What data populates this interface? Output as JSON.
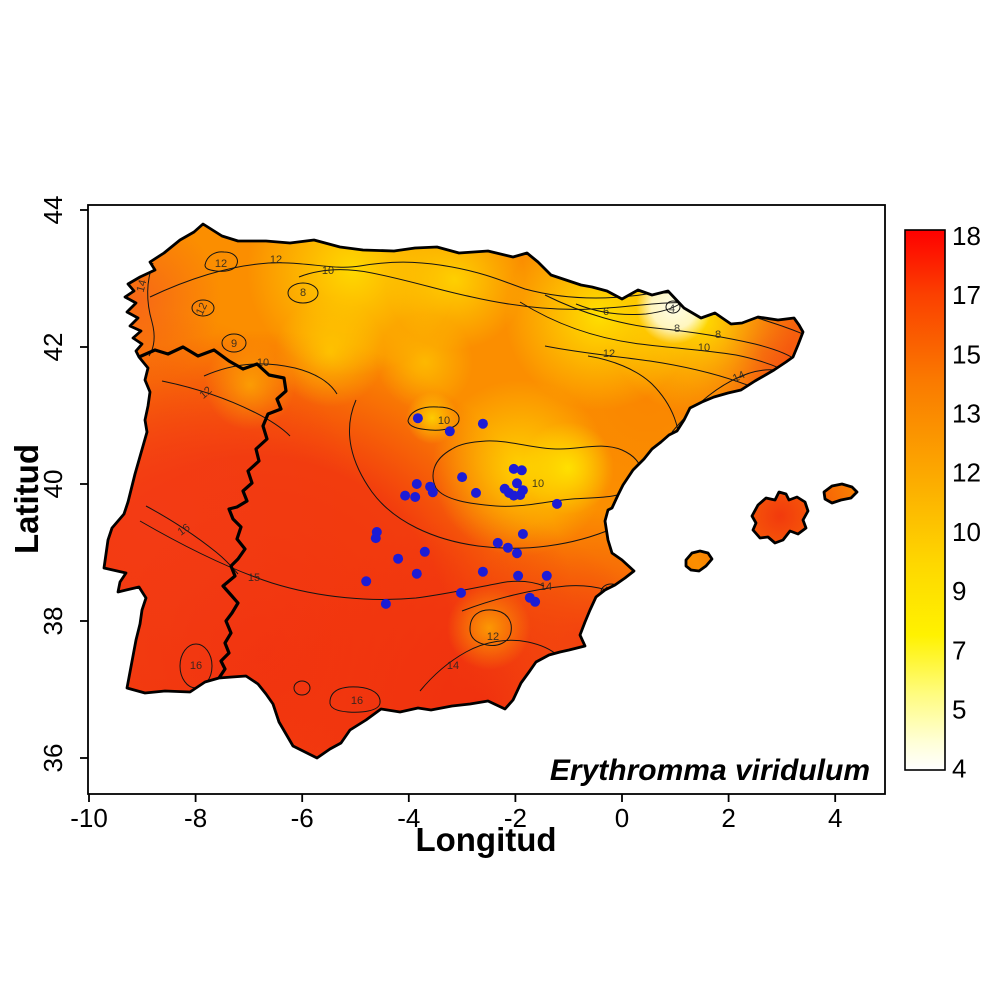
{
  "annotation": {
    "species_label": "Erythromma viridulum"
  },
  "axes": {
    "x": {
      "label": "Longitud",
      "ticks": [
        "-10",
        "-8",
        "-6",
        "-4",
        "-2",
        "0",
        "2",
        "4"
      ]
    },
    "y": {
      "label": "Latitud",
      "ticks": [
        "44",
        "42",
        "40",
        "38",
        "36"
      ]
    }
  },
  "colorbar": {
    "ticks": [
      "18",
      "17",
      "15",
      "13",
      "12",
      "10",
      "9",
      "7",
      "5",
      "4"
    ],
    "min": 4,
    "max": 18,
    "gradient_top_to_bottom": [
      "#FF0000",
      "#FB4000",
      "#FA7A00",
      "#FCA800",
      "#FED800",
      "#FFF200",
      "#FFFC80",
      "#FFFFD8",
      "#FFFFFF"
    ]
  },
  "chart_data": {
    "type": "heatmap",
    "subtype": "interpolated temperature surface with contour lines over the Iberian Peninsula",
    "title": "",
    "annotation": "Erythromma viridulum",
    "xlabel": "Longitud",
    "ylabel": "Latitud",
    "xlim": [
      -10.6,
      4.9
    ],
    "ylim": [
      35.9,
      44.1
    ],
    "grid": false,
    "legend_position": "right colorbar",
    "colorbar": {
      "min": 4,
      "max": 18,
      "tick_labels": [
        18,
        17,
        15,
        13,
        12,
        10,
        9,
        7,
        5,
        4
      ],
      "palette": "heat: white-yellow-orange-red"
    },
    "contour_levels_visible": [
      4,
      6,
      8,
      9,
      10,
      12,
      14,
      15,
      16
    ],
    "contour_labels": [
      {
        "v": "12"
      },
      {
        "v": "12"
      },
      {
        "v": "10"
      },
      {
        "v": "8"
      },
      {
        "v": "12"
      },
      {
        "v": "9"
      },
      {
        "v": "10"
      },
      {
        "v": "12"
      },
      {
        "v": "14"
      },
      {
        "v": "6"
      },
      {
        "v": "4"
      },
      {
        "v": "8"
      },
      {
        "v": "8"
      },
      {
        "v": "10"
      },
      {
        "v": "12"
      },
      {
        "v": "14"
      },
      {
        "v": "10"
      },
      {
        "v": "10"
      },
      {
        "v": "14"
      },
      {
        "v": "15"
      },
      {
        "v": "14"
      },
      {
        "v": "12"
      },
      {
        "v": "16"
      },
      {
        "v": "16"
      },
      {
        "v": "16"
      },
      {
        "v": "16"
      }
    ],
    "point_color": "#1c1cd6",
    "points_series_name": "occurrence records",
    "points": [
      {
        "lon": -3.83,
        "lat": 40.96
      },
      {
        "lon": -3.23,
        "lat": 40.77
      },
      {
        "lon": -2.61,
        "lat": 40.88
      },
      {
        "lon": -3.0,
        "lat": 40.1
      },
      {
        "lon": -3.55,
        "lat": 39.88
      },
      {
        "lon": -2.74,
        "lat": 39.87
      },
      {
        "lon": -3.85,
        "lat": 40.0
      },
      {
        "lon": -3.6,
        "lat": 39.96
      },
      {
        "lon": -4.07,
        "lat": 39.83
      },
      {
        "lon": -3.88,
        "lat": 39.81
      },
      {
        "lon": -2.03,
        "lat": 40.22
      },
      {
        "lon": -1.88,
        "lat": 40.2
      },
      {
        "lon": -1.97,
        "lat": 40.01
      },
      {
        "lon": -2.2,
        "lat": 39.93
      },
      {
        "lon": -2.12,
        "lat": 39.87
      },
      {
        "lon": -2.03,
        "lat": 39.83
      },
      {
        "lon": -1.91,
        "lat": 39.84
      },
      {
        "lon": -1.86,
        "lat": 39.91
      },
      {
        "lon": -1.22,
        "lat": 39.71
      },
      {
        "lon": -4.6,
        "lat": 39.3
      },
      {
        "lon": -4.62,
        "lat": 39.21
      },
      {
        "lon": -3.7,
        "lat": 39.01
      },
      {
        "lon": -4.2,
        "lat": 38.91
      },
      {
        "lon": -3.85,
        "lat": 38.69
      },
      {
        "lon": -4.8,
        "lat": 38.58
      },
      {
        "lon": -4.43,
        "lat": 38.25
      },
      {
        "lon": -3.02,
        "lat": 38.41
      },
      {
        "lon": -2.61,
        "lat": 38.72
      },
      {
        "lon": -2.33,
        "lat": 39.14
      },
      {
        "lon": -2.14,
        "lat": 39.07
      },
      {
        "lon": -1.97,
        "lat": 38.99
      },
      {
        "lon": -1.95,
        "lat": 38.66
      },
      {
        "lon": -1.86,
        "lat": 39.27
      },
      {
        "lon": -1.73,
        "lat": 38.34
      },
      {
        "lon": -1.63,
        "lat": 38.28
      },
      {
        "lon": -1.41,
        "lat": 38.66
      }
    ]
  }
}
